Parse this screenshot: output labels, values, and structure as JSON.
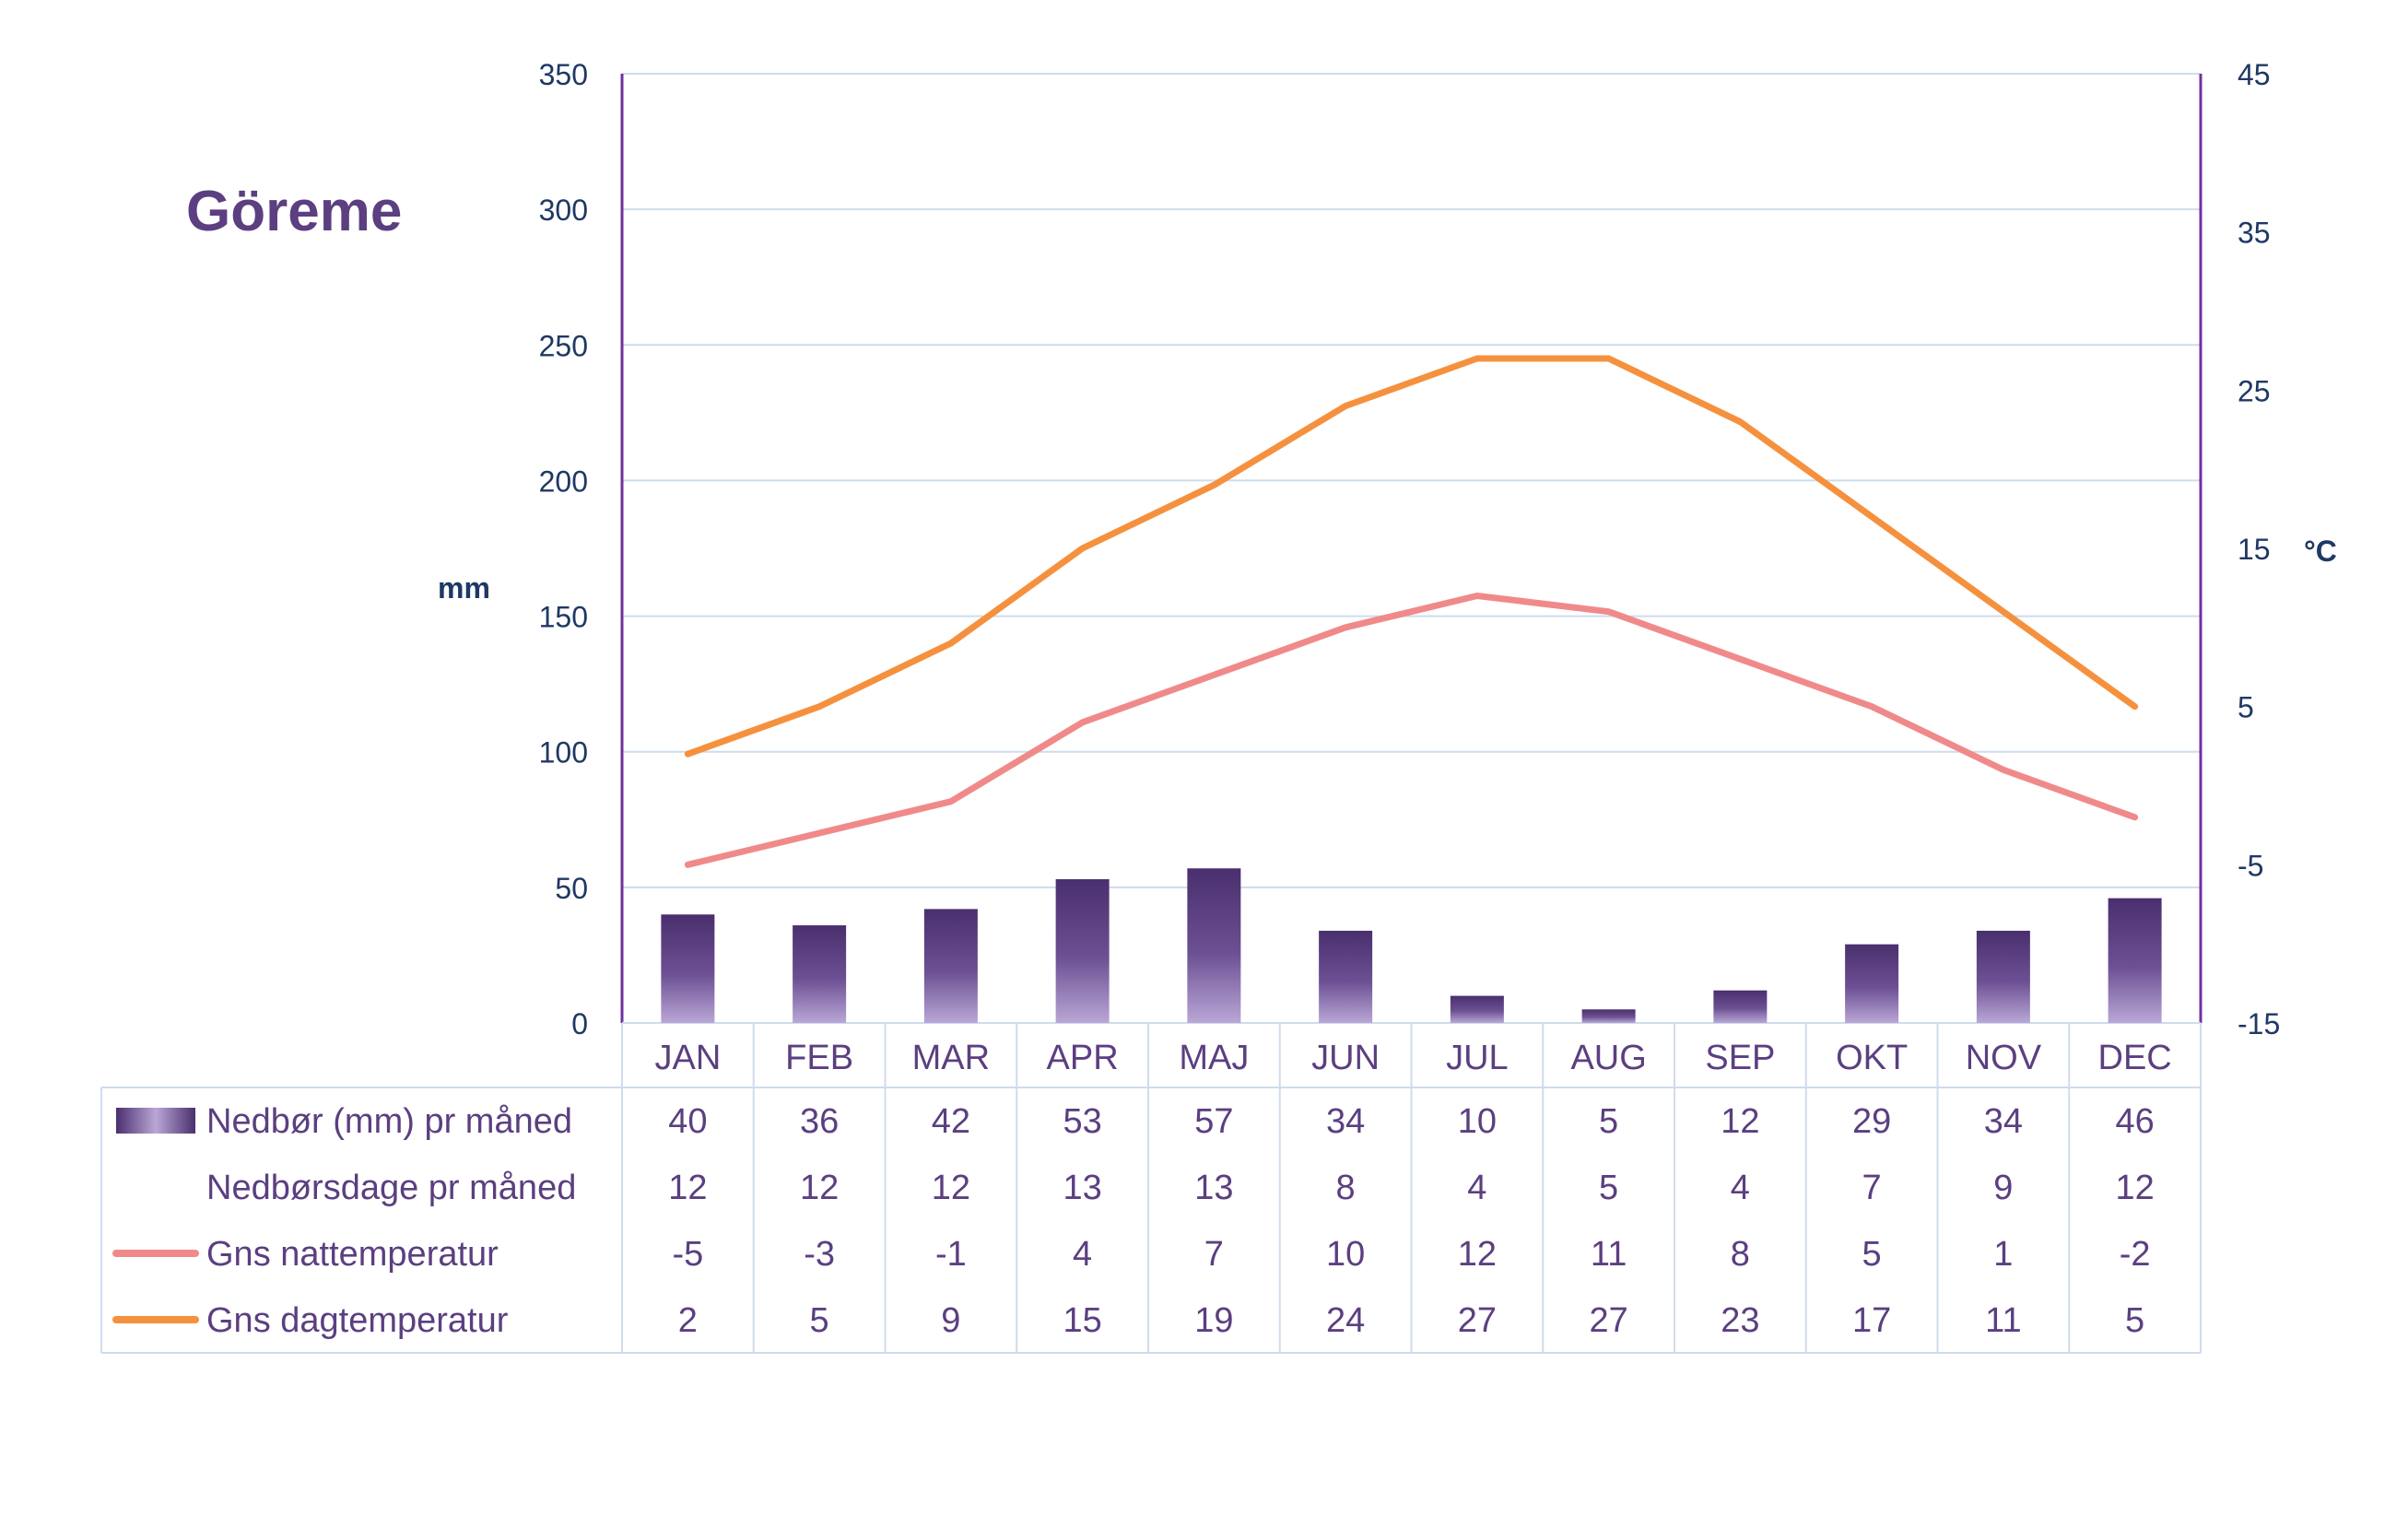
{
  "chart_data": {
    "type": "bar",
    "title": "Göreme",
    "y_left_label": "mm",
    "y_right_label": "°C",
    "y_left_range": [
      0,
      350
    ],
    "y_left_ticks": [
      "0",
      "50",
      "100",
      "150",
      "200",
      "250",
      "300",
      "350"
    ],
    "y_right_range": [
      -15,
      45
    ],
    "y_right_ticks": [
      "-15",
      "-5",
      "5",
      "15",
      "25",
      "35",
      "45"
    ],
    "grid": true,
    "legend_placement": "bottom-table",
    "categories": [
      "JAN",
      "FEB",
      "MAR",
      "APR",
      "MAJ",
      "JUN",
      "JUL",
      "AUG",
      "SEP",
      "OKT",
      "NOV",
      "DEC"
    ],
    "series": [
      {
        "name": "Nedbør (mm) pr måned",
        "type": "bar",
        "axis": "left",
        "color": "#5b3f80",
        "values": [
          40,
          36,
          42,
          53,
          57,
          34,
          10,
          5,
          12,
          29,
          34,
          46
        ]
      },
      {
        "name": "Nedbørsdage pr måned",
        "type": "table-only",
        "values": [
          12,
          12,
          12,
          13,
          13,
          8,
          4,
          5,
          4,
          7,
          9,
          12
        ]
      },
      {
        "name": "Gns nattemperatur",
        "type": "line",
        "axis": "right",
        "color": "#f08a8a",
        "values": [
          -5,
          -3,
          -1,
          4,
          7,
          10,
          12,
          11,
          8,
          5,
          1,
          -2
        ]
      },
      {
        "name": "Gns dagtemperatur",
        "type": "line",
        "axis": "right",
        "color": "#f5913e",
        "values": [
          2,
          5,
          9,
          15,
          19,
          24,
          27,
          27,
          23,
          17,
          11,
          5
        ]
      }
    ]
  },
  "colors": {
    "title": "#5b3f80",
    "axis_text": "#1f3864",
    "axis_line": "#7030a0",
    "grid": "#cfdcec",
    "table_border": "#cfdcec",
    "bar_dark": "#4a2f6e",
    "bar_light": "#b9a7d6",
    "night_line": "#f08a8a",
    "day_line": "#f5913e",
    "table_text": "#5b3f80"
  }
}
